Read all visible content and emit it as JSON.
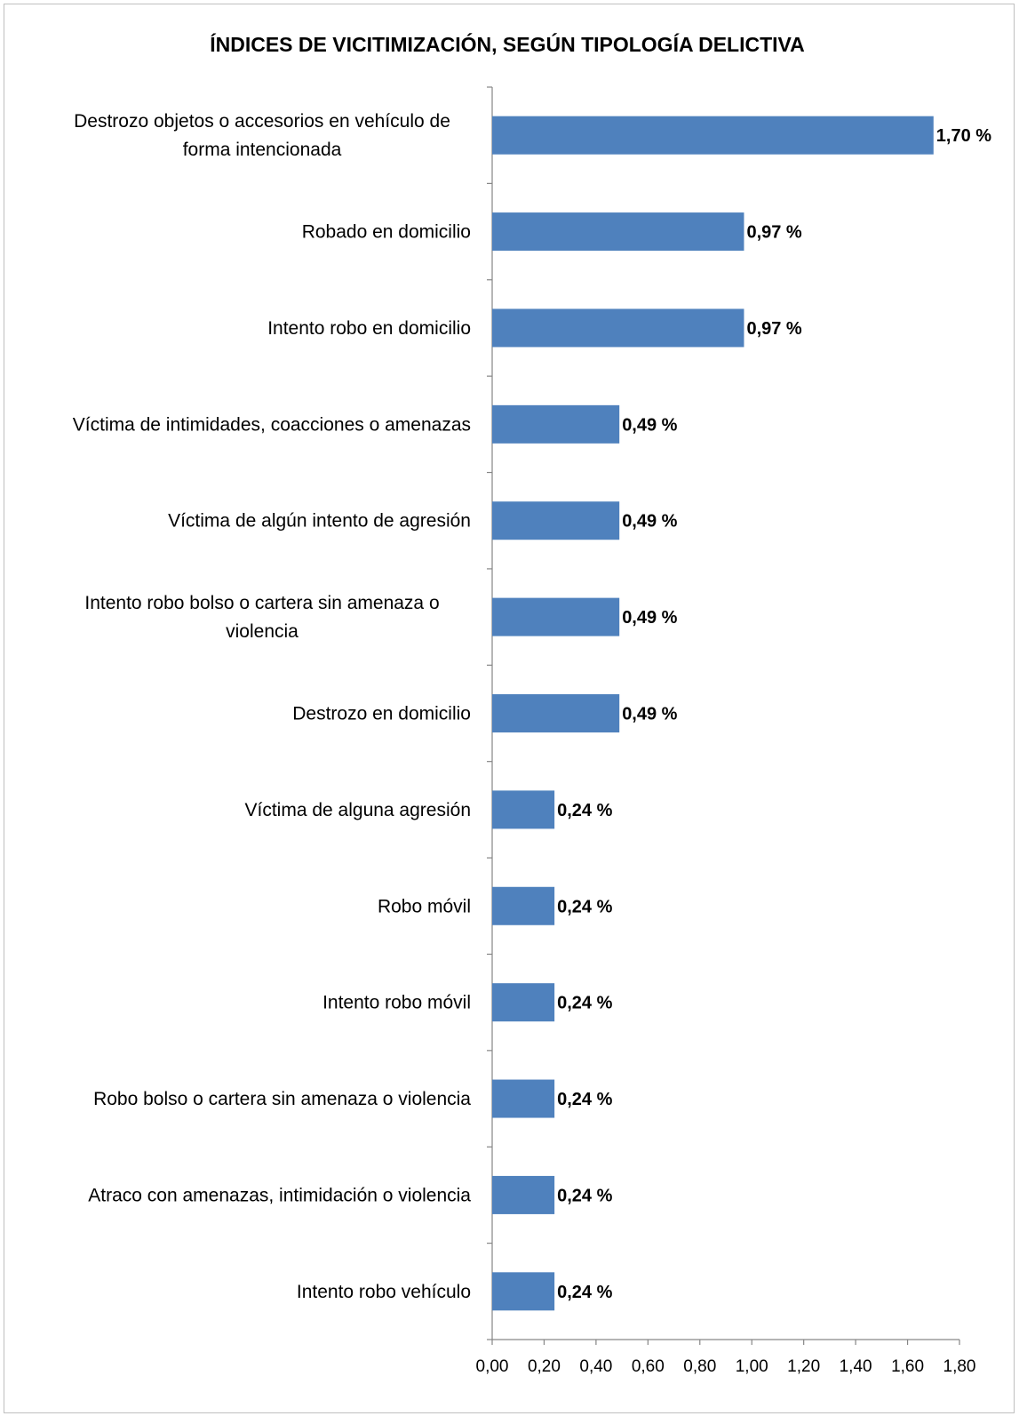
{
  "chart_data": {
    "type": "bar",
    "orientation": "horizontal",
    "title": "ÍNDICES DE VICITIMIZACIÓN, SEGÚN TIPOLOGÍA DELICTIVA",
    "categories": [
      "Destrozo objetos o accesorios en vehículo de forma intencionada",
      "Robado en domicilio",
      "Intento robo en domicilio",
      "Víctima de intimidades, coacciones o amenazas",
      "Víctima de algún intento de agresión",
      "Intento robo  bolso o cartera sin amenaza o violencia",
      "Destrozo en domicilio",
      "Víctima de alguna agresión",
      "Robo  móvil",
      "Intento robo móvil",
      "Robo bolso o cartera sin amenaza o violencia",
      "Atraco con amenazas, intimidación o violencia",
      "Intento robo  vehículo"
    ],
    "category_lines": [
      [
        "Destrozo objetos o accesorios en vehículo de",
        "forma intencionada"
      ],
      [
        "Robado en domicilio"
      ],
      [
        "Intento robo en domicilio"
      ],
      [
        "Víctima de intimidades, coacciones o amenazas"
      ],
      [
        "Víctima de algún intento de agresión"
      ],
      [
        "Intento robo  bolso o cartera sin amenaza o",
        "violencia"
      ],
      [
        "Destrozo en domicilio"
      ],
      [
        "Víctima de alguna agresión"
      ],
      [
        "Robo  móvil"
      ],
      [
        "Intento robo móvil"
      ],
      [
        "Robo bolso o cartera sin amenaza o violencia"
      ],
      [
        "Atraco con amenazas, intimidación o violencia"
      ],
      [
        "Intento robo  vehículo"
      ]
    ],
    "values": [
      1.7,
      0.97,
      0.97,
      0.49,
      0.49,
      0.49,
      0.49,
      0.24,
      0.24,
      0.24,
      0.24,
      0.24,
      0.24
    ],
    "value_labels": [
      "1,70 %",
      "0,97 %",
      "0,97 %",
      "0,49 %",
      "0,49 %",
      "0,49 %",
      "0,49 %",
      "0,24 %",
      "0,24 %",
      "0,24 %",
      "0,24 %",
      "0,24 %",
      "0,24 %"
    ],
    "xlim": [
      0,
      1.8
    ],
    "xticks": [
      0,
      0.2,
      0.4,
      0.6,
      0.8,
      1.0,
      1.2,
      1.4,
      1.6,
      1.8
    ],
    "xtick_labels": [
      "0,00",
      "0,20",
      "0,40",
      "0,60",
      "0,80",
      "1,00",
      "1,20",
      "1,40",
      "1,60",
      "1,80"
    ],
    "xlabel": "",
    "ylabel": "",
    "grid": false,
    "legend": "none",
    "bar_color": "#4f81bd"
  }
}
